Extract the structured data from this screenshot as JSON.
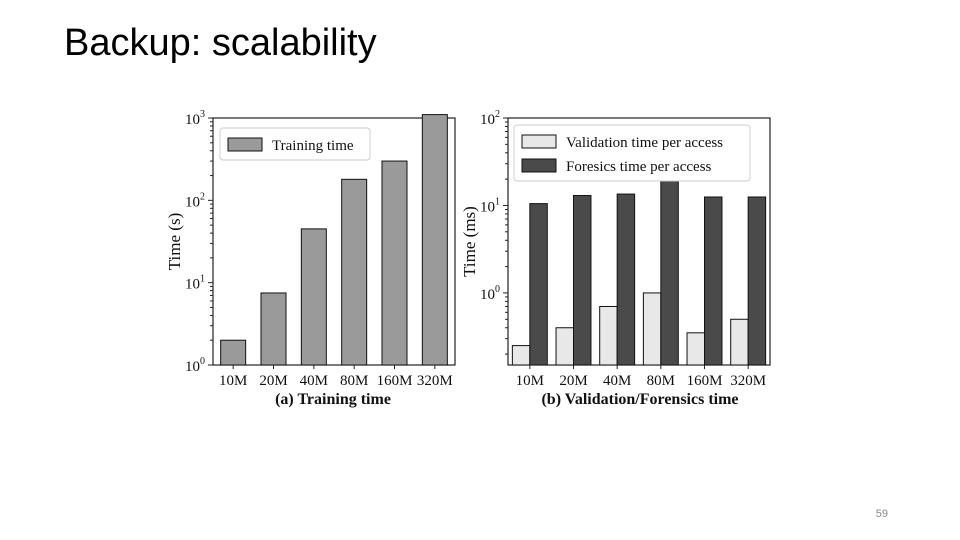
{
  "slide": {
    "title": "Backup: scalability",
    "page_number": "59"
  },
  "colors": {
    "training": "#9a9a9a",
    "validation": "#e8e8e8",
    "forensics": "#4a4a4a",
    "axis": "#222222"
  },
  "chart_data": [
    {
      "type": "bar",
      "caption": "(a) Training time",
      "ylabel": "Time (s)",
      "yscale": "log",
      "ylim": [
        1,
        1000
      ],
      "ytick_labels": [
        {
          "base": "10",
          "exp": "0"
        },
        {
          "base": "10",
          "exp": "1"
        },
        {
          "base": "10",
          "exp": "2"
        },
        {
          "base": "10",
          "exp": "3"
        }
      ],
      "categories": [
        "10M",
        "20M",
        "40M",
        "80M",
        "160M",
        "320M"
      ],
      "series": [
        {
          "name": "Training time",
          "color": "#9a9a9a",
          "values": [
            2,
            7.5,
            45,
            180,
            300,
            1100
          ]
        }
      ],
      "legend_position": "top-left"
    },
    {
      "type": "bar",
      "caption": "(b) Validation/Forensics time",
      "ylabel": "Time (ms)",
      "yscale": "log",
      "ylim": [
        0.15,
        100
      ],
      "ytick_labels": [
        {
          "base": "10",
          "exp": "0"
        },
        {
          "base": "10",
          "exp": "1"
        },
        {
          "base": "10",
          "exp": "2"
        }
      ],
      "categories": [
        "10M",
        "20M",
        "40M",
        "80M",
        "160M",
        "320M"
      ],
      "series": [
        {
          "name": "Validation time per access",
          "color": "#e8e8e8",
          "values": [
            0.25,
            0.4,
            0.7,
            1.0,
            0.35,
            0.5
          ]
        },
        {
          "name": "Foresics time per access",
          "color": "#4a4a4a",
          "values": [
            10.5,
            13,
            13.5,
            19,
            12.5,
            12.5
          ]
        }
      ],
      "legend_position": "top"
    }
  ]
}
